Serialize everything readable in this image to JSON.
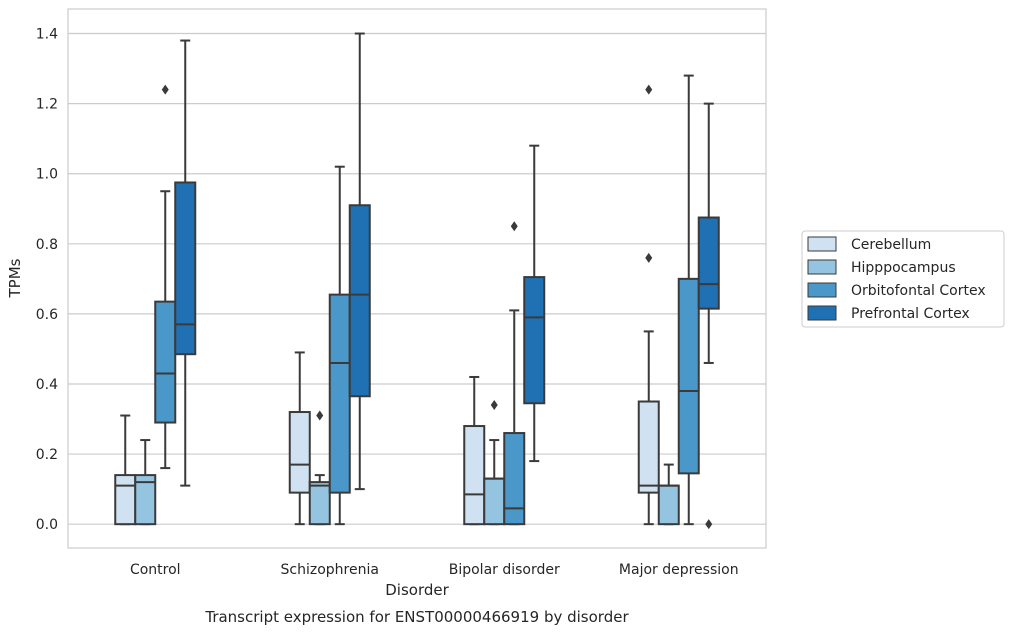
{
  "chart_data": {
    "type": "box",
    "title": "",
    "caption": "Transcript expression for ENST00000466919 by disorder",
    "xlabel": "Disorder",
    "ylabel": "TPMs",
    "ylim": [
      -0.068,
      1.47
    ],
    "yticks": [
      0.0,
      0.2,
      0.4,
      0.6,
      0.8,
      1.0,
      1.2,
      1.4
    ],
    "ytick_labels": [
      "0.0",
      "0.2",
      "0.4",
      "0.6",
      "0.8",
      "1.0",
      "1.2",
      "1.4"
    ],
    "grid": "horizontal",
    "legend_position": "right",
    "categories": [
      "Control",
      "Schizophrenia",
      "Bipolar disorder",
      "Major depression"
    ],
    "series": [
      {
        "name": "Cerebellum",
        "color": "#d0e1f2",
        "boxes": [
          {
            "whislo": 0.0,
            "q1": 0.0,
            "med": 0.11,
            "q3": 0.14,
            "whishi": 0.31,
            "fliers": []
          },
          {
            "whislo": 0.0,
            "q1": 0.09,
            "med": 0.17,
            "q3": 0.32,
            "whishi": 0.49,
            "fliers": []
          },
          {
            "whislo": 0.0,
            "q1": 0.0,
            "med": 0.085,
            "q3": 0.28,
            "whishi": 0.42,
            "fliers": []
          },
          {
            "whislo": 0.0,
            "q1": 0.09,
            "med": 0.11,
            "q3": 0.35,
            "whishi": 0.55,
            "fliers": [
              0.76,
              1.24
            ]
          }
        ]
      },
      {
        "name": "Hipppocampus",
        "color": "#94c4df",
        "boxes": [
          {
            "whislo": 0.0,
            "q1": 0.0,
            "med": 0.12,
            "q3": 0.14,
            "whishi": 0.24,
            "fliers": []
          },
          {
            "whislo": 0.0,
            "q1": 0.0,
            "med": 0.11,
            "q3": 0.12,
            "whishi": 0.14,
            "fliers": [
              0.31
            ]
          },
          {
            "whislo": 0.0,
            "q1": 0.0,
            "med": 0.13,
            "q3": 0.13,
            "whishi": 0.24,
            "fliers": [
              0.34
            ]
          },
          {
            "whislo": 0.0,
            "q1": 0.0,
            "med": 0.11,
            "q3": 0.11,
            "whishi": 0.17,
            "fliers": []
          }
        ]
      },
      {
        "name": "Orbitofontal Cortex",
        "color": "#4a98c9",
        "boxes": [
          {
            "whislo": 0.16,
            "q1": 0.29,
            "med": 0.43,
            "q3": 0.635,
            "whishi": 0.95,
            "fliers": [
              1.24
            ]
          },
          {
            "whislo": 0.0,
            "q1": 0.09,
            "med": 0.46,
            "q3": 0.655,
            "whishi": 1.02,
            "fliers": []
          },
          {
            "whislo": 0.0,
            "q1": 0.0,
            "med": 0.045,
            "q3": 0.26,
            "whishi": 0.61,
            "fliers": [
              0.85
            ]
          },
          {
            "whislo": 0.0,
            "q1": 0.145,
            "med": 0.38,
            "q3": 0.7,
            "whishi": 1.28,
            "fliers": []
          }
        ]
      },
      {
        "name": "Prefrontal Cortex",
        "color": "#2070b4",
        "boxes": [
          {
            "whislo": 0.11,
            "q1": 0.485,
            "med": 0.57,
            "q3": 0.975,
            "whishi": 1.38,
            "fliers": []
          },
          {
            "whislo": 0.1,
            "q1": 0.365,
            "med": 0.655,
            "q3": 0.91,
            "whishi": 1.4,
            "fliers": []
          },
          {
            "whislo": 0.18,
            "q1": 0.345,
            "med": 0.59,
            "q3": 0.705,
            "whishi": 1.08,
            "fliers": []
          },
          {
            "whislo": 0.46,
            "q1": 0.615,
            "med": 0.685,
            "q3": 0.875,
            "whishi": 1.2,
            "fliers": [
              0.0
            ]
          }
        ]
      }
    ],
    "colors": {
      "line": "#3a3a3a",
      "grid": "#cccccc",
      "frame": "#cccccc",
      "text": "#262626"
    }
  }
}
